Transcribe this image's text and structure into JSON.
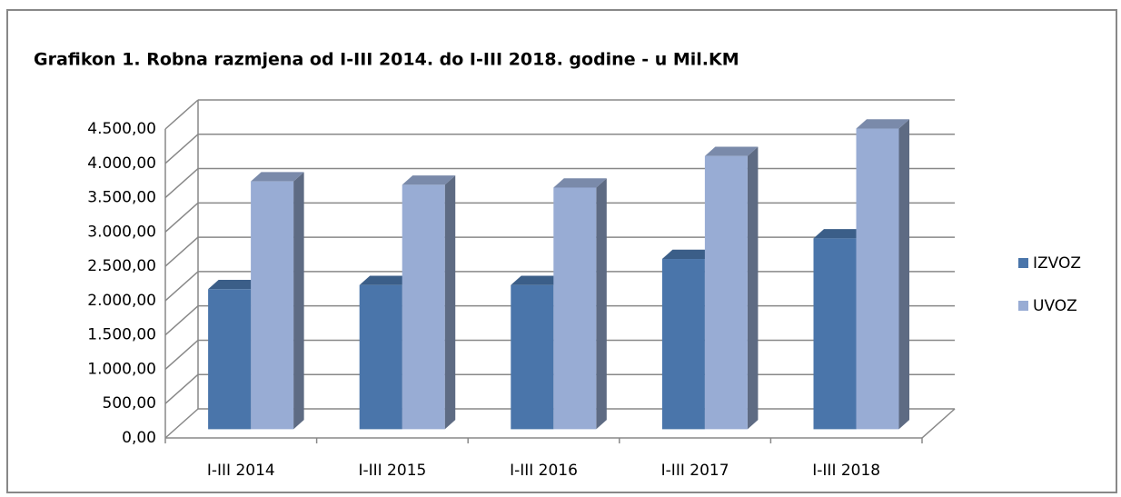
{
  "chart_data": {
    "type": "bar3d",
    "title": "Grafikon 1. Robna razmjena  od I-III 2014. do I-III 2018. godine - u Mil.KM",
    "categories": [
      "I-III 2014",
      "I-III 2015",
      "I-III 2016",
      "I-III 2017",
      "I-III 2018"
    ],
    "series": [
      {
        "name": "IZVOZ",
        "color": "#4a75aa",
        "values": [
          2040,
          2100,
          2100,
          2480,
          2780
        ]
      },
      {
        "name": "UVOZ",
        "color": "#98acd4",
        "values": [
          3610,
          3560,
          3520,
          3980,
          4380
        ]
      }
    ],
    "ylim": [
      0,
      4500
    ],
    "yticks": [
      {
        "value": 0,
        "label": "0,00"
      },
      {
        "value": 500,
        "label": "500,00"
      },
      {
        "value": 1000,
        "label": "1.000,00"
      },
      {
        "value": 1500,
        "label": "1.500,00"
      },
      {
        "value": 2000,
        "label": "2.000,00"
      },
      {
        "value": 2500,
        "label": "2.500,00"
      },
      {
        "value": 3000,
        "label": "3.000,00"
      },
      {
        "value": 3500,
        "label": "3.500,00"
      },
      {
        "value": 4000,
        "label": "4.000,00"
      },
      {
        "value": 4500,
        "label": "4.500,00"
      }
    ],
    "grid": true,
    "legend": "right"
  }
}
